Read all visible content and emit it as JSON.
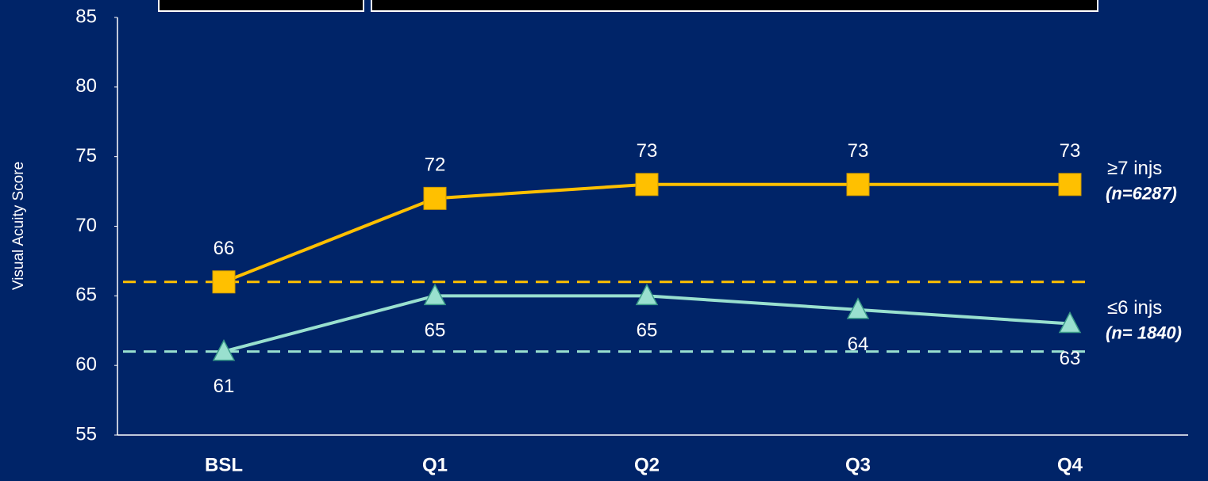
{
  "chart_data": {
    "type": "line",
    "y_label": "Visual Acuity Score",
    "categories": [
      "BSL",
      "Q1",
      "Q2",
      "Q3",
      "Q4"
    ],
    "series": [
      {
        "name": "≥7 injs",
        "sample": "(n=6287)",
        "color": "#ffc000",
        "marker": "square",
        "label_side": "above",
        "values": [
          66,
          72,
          73,
          73,
          73
        ]
      },
      {
        "name": "≤6 injs",
        "sample": "(n= 1840)",
        "color": "#99e0cf",
        "marker": "triangle",
        "label_side": "below",
        "values": [
          61,
          65,
          65,
          64,
          63
        ]
      }
    ],
    "baseline_lines": true,
    "ylim": [
      55,
      85
    ],
    "yticks": [
      55,
      60,
      65,
      70,
      75,
      80,
      85
    ],
    "grid": false
  }
}
